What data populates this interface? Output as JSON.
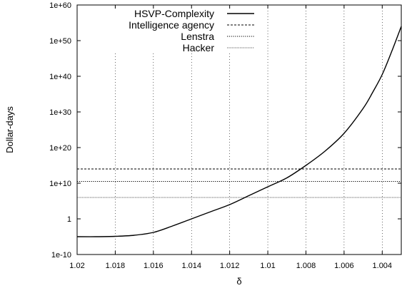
{
  "chart_data": {
    "type": "line",
    "title": "",
    "xlabel": "δ",
    "ylabel": "Dollar-days",
    "x_reversed": true,
    "y_scale": "log10",
    "xlim": [
      1.02,
      1.003
    ],
    "ylim_exponent": [
      -10,
      60
    ],
    "x_ticks": [
      1.02,
      1.018,
      1.016,
      1.014,
      1.012,
      1.01,
      1.008,
      1.006,
      1.004
    ],
    "x_tick_labels": [
      "1.02",
      "1.018",
      "1.016",
      "1.014",
      "1.012",
      "1.01",
      "1.008",
      "1.006",
      "1.004"
    ],
    "y_ticks_exponent": [
      -10,
      0,
      10,
      20,
      30,
      40,
      50,
      60
    ],
    "y_tick_labels": [
      "1e-10",
      "1",
      "1e+10",
      "1e+20",
      "1e+30",
      "1e+40",
      "1e+50",
      "1e+60"
    ],
    "grid": "dotted vertical lines at x ticks",
    "legend_position": "top-left",
    "series": [
      {
        "name": "HSVP-Complexity",
        "style": "solid",
        "kind": "curve",
        "x": [
          1.02,
          1.019,
          1.018,
          1.017,
          1.016,
          1.015,
          1.014,
          1.013,
          1.012,
          1.011,
          1.01,
          1.009,
          1.008,
          1.007,
          1.006,
          1.005,
          1.0045,
          1.004,
          1.0035,
          1.003
        ],
        "log10_y": [
          -5,
          -5,
          -4.9,
          -4.6,
          -3.8,
          -2,
          0,
          2,
          4,
          6.5,
          9,
          11.5,
          15,
          19,
          24,
          31,
          35.5,
          40.5,
          47,
          54
        ]
      },
      {
        "name": "Intelligence agency",
        "style": "dashed",
        "kind": "constant",
        "log10_y": 14
      },
      {
        "name": "Lenstra",
        "style": "dotted",
        "kind": "constant",
        "log10_y": 10.5
      },
      {
        "name": "Hacker",
        "style": "fine-dotted",
        "kind": "constant",
        "log10_y": 6
      }
    ]
  }
}
